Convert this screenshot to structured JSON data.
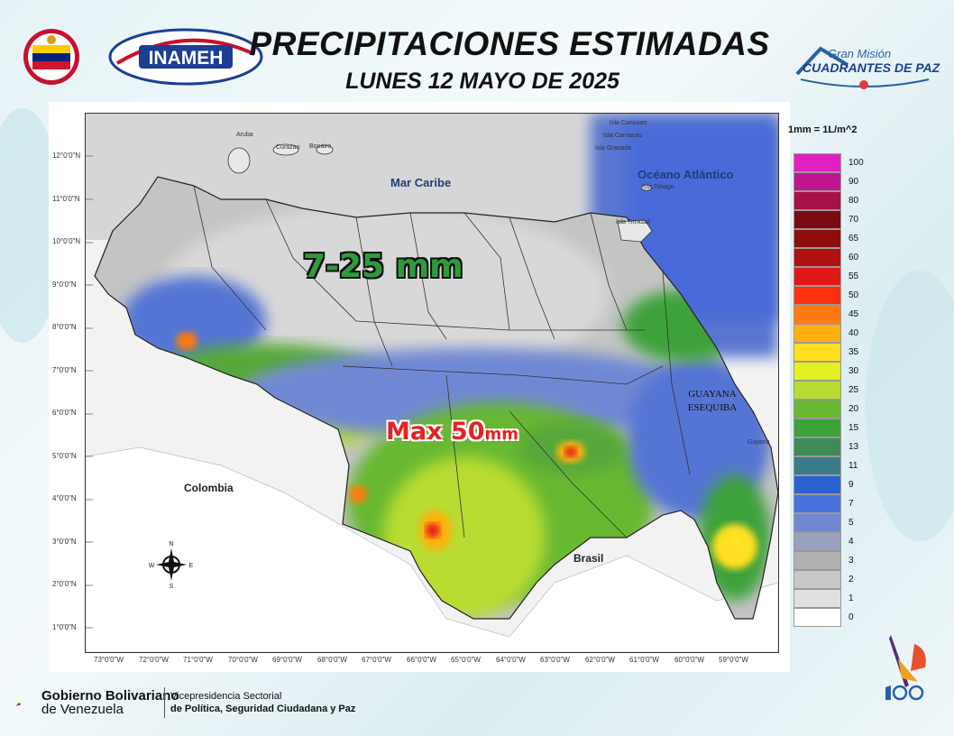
{
  "header": {
    "title": "PRECIPITACIONES ESTIMADAS",
    "subtitle": "LUNES 12 MAYO DE 2025"
  },
  "logos": {
    "inameh": "INAMEH",
    "gran_mision_top": "Gran Misión",
    "gran_mision_bottom": "CUADRANTES DE PAZ"
  },
  "map": {
    "latitude_ticks": [
      "12°0'0\"N",
      "11°0'0\"N",
      "10°0'0\"N",
      "9°0'0\"N",
      "8°0'0\"N",
      "7°0'0\"N",
      "6°0'0\"N",
      "5°0'0\"N",
      "4°0'0\"N",
      "3°0'0\"N",
      "2°0'0\"N",
      "1°0'0\"N"
    ],
    "longitude_ticks": [
      "73°0'0\"W",
      "72°0'0\"W",
      "71°0'0\"W",
      "70°0'0\"W",
      "69°0'0\"W",
      "68°0'0\"W",
      "67°0'0\"W",
      "66°0'0\"W",
      "65°0'0\"W",
      "64°0'0\"W",
      "63°0'0\"W",
      "62°0'0\"W",
      "61°0'0\"W",
      "60°0'0\"W",
      "59°0'0\"W"
    ],
    "labels": {
      "mar_caribe": "Mar Caribe",
      "oceano": "Océano Atlántico",
      "colombia": "Colombia",
      "brasil": "Brasil",
      "guyana": "Guyana",
      "guayana_line1": "GUAYANA",
      "guayana_line2": "ESEQUIBA",
      "aruba": "Aruba",
      "curazao": "Curazao",
      "bonaire": "Bonaire",
      "canouan": "Isla Canouan",
      "carriacou": "Isla Carriacou",
      "granada": "Isla Granada",
      "tobago": "Isla Tobago",
      "trinidad": "Isla Trinidad"
    },
    "callouts": {
      "range": "7-25 mm",
      "max": "Max 50",
      "max_unit": "mm"
    },
    "compass": {
      "n": "N",
      "s": "S",
      "e": "E",
      "w": "W"
    }
  },
  "legend": {
    "title": "1mm = 1L/m^2",
    "items": [
      {
        "value": "100",
        "color": "#e020c0"
      },
      {
        "value": "90",
        "color": "#c0148c"
      },
      {
        "value": "80",
        "color": "#a8104a"
      },
      {
        "value": "70",
        "color": "#7a0a14"
      },
      {
        "value": "65",
        "color": "#8e0c0c"
      },
      {
        "value": "60",
        "color": "#b01010"
      },
      {
        "value": "55",
        "color": "#e01818"
      },
      {
        "value": "50",
        "color": "#ff3010"
      },
      {
        "value": "45",
        "color": "#ff7a10"
      },
      {
        "value": "40",
        "color": "#ffb010"
      },
      {
        "value": "35",
        "color": "#ffe020"
      },
      {
        "value": "30",
        "color": "#e4f020"
      },
      {
        "value": "25",
        "color": "#b8dc30"
      },
      {
        "value": "20",
        "color": "#68b830"
      },
      {
        "value": "15",
        "color": "#3ca23a"
      },
      {
        "value": "13",
        "color": "#3e8a58"
      },
      {
        "value": "11",
        "color": "#3a7a8a"
      },
      {
        "value": "9",
        "color": "#2a62d0"
      },
      {
        "value": "7",
        "color": "#4a72dc"
      },
      {
        "value": "5",
        "color": "#7088d4"
      },
      {
        "value": "4",
        "color": "#9aa0c0"
      },
      {
        "value": "3",
        "color": "#b0b0b0"
      },
      {
        "value": "2",
        "color": "#c8c8c8"
      },
      {
        "value": "1",
        "color": "#e0e0e0"
      },
      {
        "value": "0",
        "color": "#ffffff"
      }
    ]
  },
  "footer": {
    "gobierno_bold": "Gobierno Bolivariano",
    "gobierno_rest": "de Venezuela",
    "vice_line1": "Vicepresidencia Sectorial",
    "vice_line2": "de Política, Seguridad Ciudadana y Paz"
  }
}
